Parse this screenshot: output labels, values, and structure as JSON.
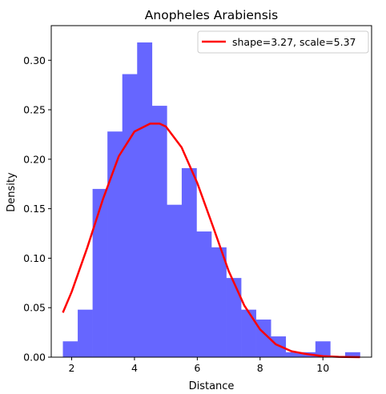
{
  "chart_data": {
    "type": "bar",
    "title": "Anopheles Arabiensis",
    "xlabel": "Distance",
    "ylabel": "Density",
    "xlim": [
      1.35,
      11.55
    ],
    "ylim": [
      0,
      0.335
    ],
    "xticks": [
      2,
      4,
      6,
      8,
      10
    ],
    "yticks": [
      0.0,
      0.05,
      0.1,
      0.15,
      0.2,
      0.25,
      0.3
    ],
    "ytick_labels": [
      "0.00",
      "0.05",
      "0.10",
      "0.15",
      "0.20",
      "0.25",
      "0.30"
    ],
    "legend_position": "top-right",
    "histogram": {
      "color": "#6666ff",
      "bin_edges": [
        1.72,
        2.193,
        2.666,
        3.139,
        3.612,
        4.085,
        4.558,
        5.031,
        5.504,
        5.977,
        6.45,
        6.923,
        7.396,
        7.869,
        8.342,
        8.815,
        9.288,
        9.761,
        10.234,
        10.707,
        11.18
      ],
      "densities": [
        0.016,
        0.048,
        0.17,
        0.228,
        0.286,
        0.318,
        0.254,
        0.154,
        0.191,
        0.127,
        0.111,
        0.08,
        0.048,
        0.038,
        0.021,
        0.005,
        0.005,
        0.016,
        0.0,
        0.005
      ]
    },
    "series": [
      {
        "name": "shape=3.27, scale=5.37",
        "type": "line",
        "color": "#ff0000",
        "x": [
          1.72,
          2.0,
          2.5,
          3.0,
          3.5,
          4.0,
          4.5,
          4.8,
          5.0,
          5.5,
          6.0,
          6.5,
          7.0,
          7.5,
          8.0,
          8.5,
          9.0,
          9.5,
          10.0,
          10.5,
          11.18
        ],
        "y": [
          0.045,
          0.066,
          0.111,
          0.16,
          0.203,
          0.228,
          0.236,
          0.236,
          0.233,
          0.212,
          0.176,
          0.132,
          0.087,
          0.052,
          0.028,
          0.013,
          0.006,
          0.003,
          0.001,
          0.0003,
          0.0
        ]
      }
    ]
  }
}
